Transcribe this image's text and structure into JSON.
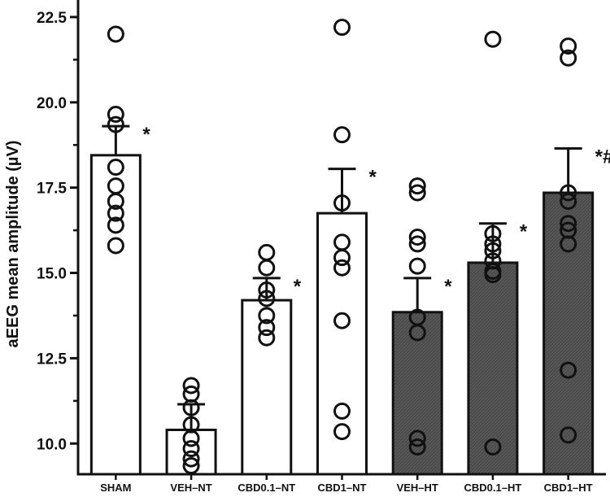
{
  "chart_data": {
    "type": "bar",
    "ylabel": "aEEG mean amplitude (µV)",
    "xlabel": "",
    "ylim": [
      9.1,
      23.0
    ],
    "yticks": [
      10.0,
      12.5,
      15.0,
      17.5,
      20.0,
      22.5
    ],
    "ytick_labels": [
      "10.0",
      "12.5",
      "15.0",
      "17.5",
      "20.0",
      "22.5"
    ],
    "categories": [
      "SHAM",
      "VEH-NT",
      "CBD0.1-NT",
      "CBD1-NT",
      "VEH-HT",
      "CBD0.1-HT",
      "CBD1-HT"
    ],
    "category_labels": [
      "SHAM",
      "VEH–NT",
      "CBD0.1–NT",
      "CBD1–NT",
      "VEH–HT",
      "CBD0.1–HT",
      "CBD1–HT"
    ],
    "values": [
      18.45,
      10.4,
      14.2,
      16.75,
      13.85,
      15.3,
      17.35
    ],
    "error_upper": [
      19.3,
      11.15,
      14.85,
      18.05,
      14.85,
      16.45,
      18.65
    ],
    "bar_fill": [
      "white",
      "white",
      "white",
      "white",
      "dark",
      "dark",
      "dark"
    ],
    "significance": [
      "*",
      "",
      "*",
      "*",
      "*",
      "*",
      "*#"
    ],
    "points": [
      [
        22.0,
        19.65,
        19.35,
        18.1,
        17.55,
        17.1,
        16.75,
        16.4,
        15.8
      ],
      [
        11.7,
        11.45,
        11.05,
        10.55,
        10.15,
        9.85,
        9.55,
        9.35
      ],
      [
        15.6,
        15.15,
        14.5,
        14.25,
        13.75,
        13.4,
        13.1
      ],
      [
        22.2,
        19.05,
        17.05,
        15.9,
        15.45,
        15.15,
        13.6,
        10.95,
        10.35
      ],
      [
        17.55,
        17.35,
        16.05,
        15.85,
        15.2,
        13.7,
        13.25,
        10.15,
        9.9
      ],
      [
        21.85,
        16.15,
        15.85,
        15.65,
        15.35,
        15.05,
        14.95,
        9.9
      ],
      [
        21.65,
        21.3,
        17.35,
        17.1,
        16.45,
        16.25,
        15.85,
        12.15,
        10.25
      ]
    ]
  },
  "colors": {
    "axis": "#111111",
    "bar_white": "#ffffff",
    "bar_dark": "#4a4a4a",
    "marker_stroke": "#111111"
  }
}
